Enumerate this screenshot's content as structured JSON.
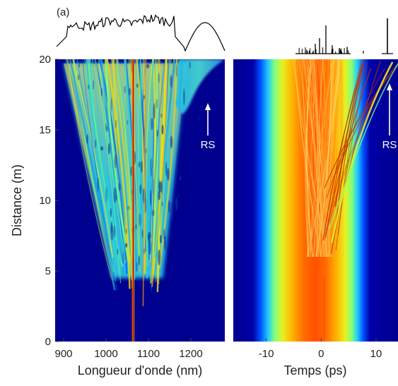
{
  "panel_label": "(a)",
  "chart_data": [
    {
      "type": "heatmap",
      "xlabel": "Longueur d'onde (nm)",
      "ylabel": "Distance (m)",
      "xlim": [
        880,
        1280
      ],
      "ylim": [
        0,
        20
      ],
      "xticks": [
        "900",
        "1000",
        "1100",
        "1200"
      ],
      "xtick_values": [
        900,
        1000,
        1100,
        1200
      ],
      "yticks": [
        "0",
        "5",
        "10",
        "15",
        "20"
      ],
      "ytick_values": [
        0,
        5,
        10,
        15,
        20
      ],
      "colormap": "jet",
      "annotations": [
        {
          "text": "RS",
          "x": 1240,
          "y": 15.5
        }
      ],
      "features": {
        "pump_wavelength": 1064,
        "continuum_start_distance": 4.5,
        "continuum_range_at_20m": [
          900,
          1190
        ],
        "rs_branch_onset_distance": 16.3,
        "rs_branch_at_20m": [
          1170,
          1280
        ]
      },
      "top_profile": "spectrum at 20 m"
    },
    {
      "type": "heatmap",
      "xlabel": "Temps (ps)",
      "ylabel": "",
      "xlim": [
        -16,
        14
      ],
      "ylim": [
        0,
        20
      ],
      "xticks": [
        "-10",
        "0",
        "10"
      ],
      "xtick_values": [
        -10,
        0,
        10
      ],
      "colormap": "jet",
      "annotations": [
        {
          "text": "RS",
          "x": 13.2,
          "y": 15.5
        }
      ],
      "features": {
        "pulse_center": 0,
        "pulse_width_ps": 7,
        "soliton_onset_distance": 6,
        "soliton_drift_to_ps_at_20m": 13
      },
      "top_profile": "temporal intensity at 20 m"
    }
  ]
}
